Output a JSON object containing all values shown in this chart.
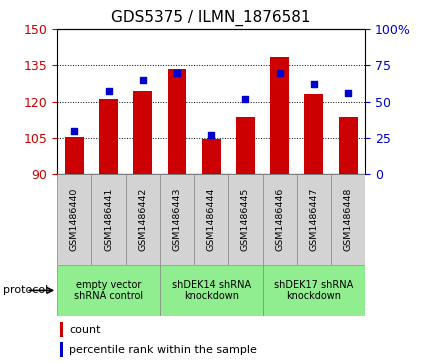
{
  "title": "GDS5375 / ILMN_1876581",
  "samples": [
    "GSM1486440",
    "GSM1486441",
    "GSM1486442",
    "GSM1486443",
    "GSM1486444",
    "GSM1486445",
    "GSM1486446",
    "GSM1486447",
    "GSM1486448"
  ],
  "count_values": [
    105.2,
    121.0,
    124.5,
    133.5,
    104.5,
    113.5,
    138.5,
    123.0,
    113.5
  ],
  "percentile_values": [
    30,
    57,
    65,
    70,
    27,
    52,
    70,
    62,
    56
  ],
  "ylim_left": [
    90,
    150
  ],
  "ylim_right": [
    0,
    100
  ],
  "yticks_left": [
    90,
    105,
    120,
    135,
    150
  ],
  "yticks_right": [
    0,
    25,
    50,
    75,
    100
  ],
  "bar_color": "#cc0000",
  "dot_color": "#0000cc",
  "bar_bottom": 90,
  "protocol_groups": [
    {
      "label": "empty vector\nshRNA control",
      "start": 0,
      "end": 3
    },
    {
      "label": "shDEK14 shRNA\nknockdown",
      "start": 3,
      "end": 6
    },
    {
      "label": "shDEK17 shRNA\nknockdown",
      "start": 6,
      "end": 9
    }
  ],
  "protocol_label": "protocol",
  "legend_count_label": "count",
  "legend_percentile_label": "percentile rank within the sample",
  "title_fontsize": 11,
  "axis_color_left": "#cc0000",
  "axis_color_right": "#0000cc",
  "grid_color": "black",
  "grid_style": ":",
  "sample_box_color": "#d3d3d3",
  "protocol_box_color": "#90ee90",
  "box_edge_color": "#888888"
}
